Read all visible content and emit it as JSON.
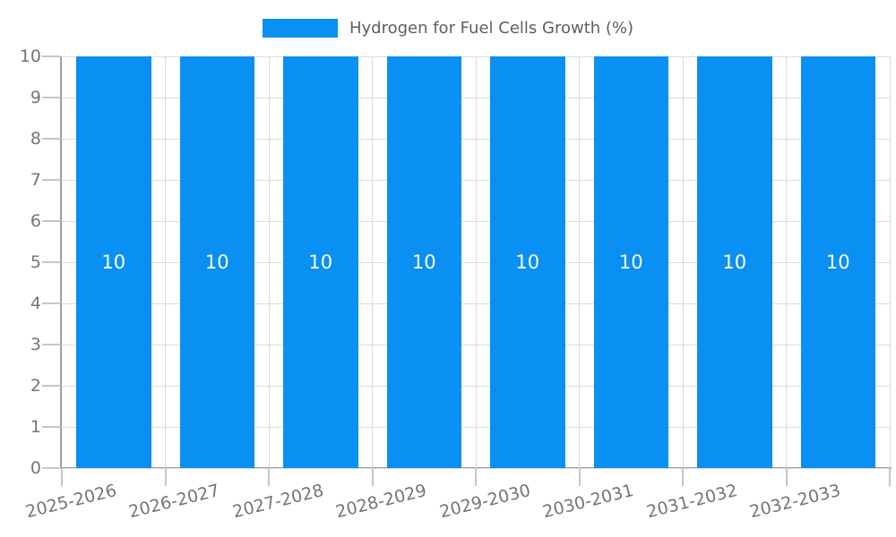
{
  "chart_data": {
    "type": "bar",
    "title": "Hydrogen for Fuel Cells Growth (%)",
    "categories": [
      "2025-2026",
      "2026-2027",
      "2027-2028",
      "2028-2029",
      "2029-2030",
      "2030-2031",
      "2031-2032",
      "2032-2033"
    ],
    "values": [
      10,
      10,
      10,
      10,
      10,
      10,
      10,
      10
    ],
    "value_labels": [
      "10",
      "10",
      "10",
      "10",
      "10",
      "10",
      "10",
      "10"
    ],
    "xlabel": "",
    "ylabel": "",
    "ylim": [
      0,
      10
    ],
    "yticks": [
      0,
      1,
      2,
      3,
      4,
      5,
      6,
      7,
      8,
      9,
      10
    ],
    "grid": true,
    "legend_position": "top-center",
    "x_label_rotation_deg": -14,
    "colors": {
      "bar": "#0a8ff2",
      "value_label": "#ffffff",
      "axis": "#9e9e9e",
      "grid": "#dcdcdc",
      "tick": "#c6c6c6",
      "tick_label": "#757575",
      "legend_text": "#5c5f62"
    }
  }
}
